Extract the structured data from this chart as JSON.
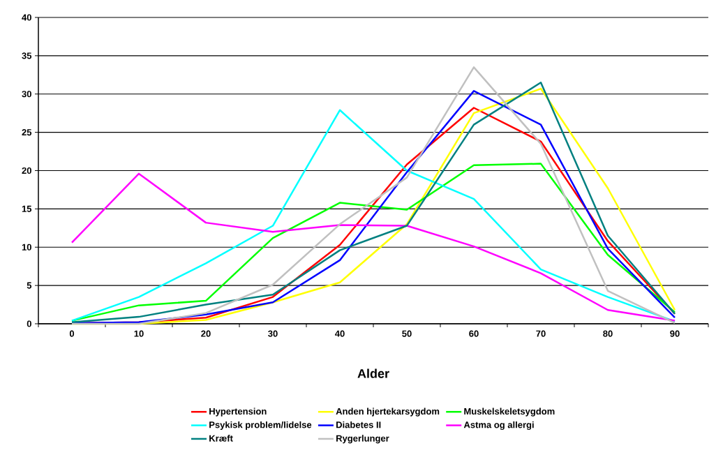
{
  "chart_data": {
    "type": "line",
    "xlabel": "Alder",
    "categories": [
      "0",
      "10",
      "20",
      "30",
      "40",
      "50",
      "60",
      "70",
      "80",
      "90"
    ],
    "series": [
      {
        "name": "Hypertension",
        "color": "#ff0000",
        "values": [
          0.1,
          0.2,
          0.8,
          3.5,
          10.3,
          20.8,
          28.2,
          23.8,
          10.8,
          1.3
        ]
      },
      {
        "name": "Anden hjertekarsygdom",
        "color": "#ffff00",
        "values": [
          0,
          0,
          0.5,
          2.8,
          5.4,
          13,
          27.5,
          30.7,
          17.7,
          1.8
        ]
      },
      {
        "name": "Muskelskeletsygdom",
        "color": "#00ff00",
        "values": [
          0.4,
          2.4,
          3.0,
          11.2,
          15.8,
          14.9,
          20.7,
          20.9,
          9.0,
          1.5
        ]
      },
      {
        "name": "Psykisk problem/lidelse",
        "color": "#00ffff",
        "values": [
          0.4,
          3.5,
          7.9,
          12.8,
          27.9,
          20.0,
          16.3,
          7.1,
          3.5,
          0.3
        ]
      },
      {
        "name": "Diabetes II",
        "color": "#0000ff",
        "values": [
          0.1,
          0.2,
          1.2,
          2.8,
          8.3,
          19.8,
          30.4,
          26.0,
          9.8,
          0.8
        ]
      },
      {
        "name": "Astma og allergi",
        "color": "#ff00ff",
        "values": [
          10.6,
          19.6,
          13.2,
          12.0,
          12.9,
          12.8,
          10.1,
          6.6,
          1.8,
          0.4
        ]
      },
      {
        "name": "Kræft",
        "color": "#008080",
        "values": [
          0.2,
          0.9,
          2.5,
          3.8,
          9.6,
          12.8,
          26.0,
          31.5,
          11.5,
          1.3
        ]
      },
      {
        "name": "Rygerlunger",
        "color": "#c0c0c0",
        "values": [
          0,
          0,
          1.4,
          5.1,
          13.0,
          19.1,
          33.5,
          23.5,
          4.3,
          0.1
        ]
      }
    ],
    "ylim": [
      0,
      40
    ],
    "yticks": [
      0,
      5,
      10,
      15,
      20,
      25,
      30,
      35,
      40
    ],
    "grid": "y",
    "legend": "bottom",
    "marker": "none",
    "line_style": "solid"
  }
}
